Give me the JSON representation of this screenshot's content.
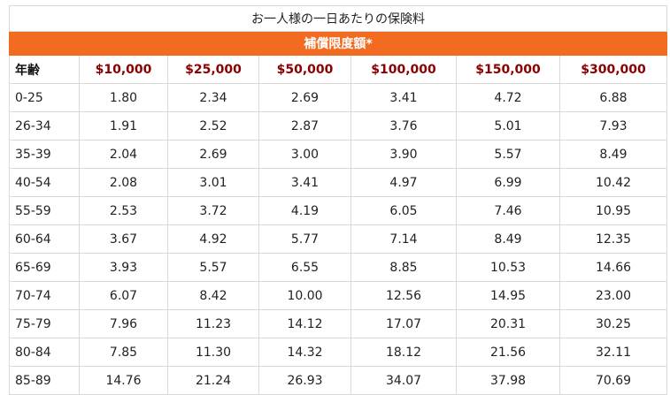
{
  "table": {
    "caption": "お一人様の一日あたりの保険料",
    "band_label": "補償限度額*",
    "age_header": "年齢",
    "amounts": [
      "$10,000",
      "$25,000",
      "$50,000",
      "$100,000",
      "$150,000",
      "$300,000"
    ],
    "rows": [
      {
        "age": "0-25",
        "values": [
          "1.80",
          "2.34",
          "2.69",
          "3.41",
          "4.72",
          "6.88"
        ]
      },
      {
        "age": "26-34",
        "values": [
          "1.91",
          "2.52",
          "2.87",
          "3.76",
          "5.01",
          "7.93"
        ]
      },
      {
        "age": "35-39",
        "values": [
          "2.04",
          "2.69",
          "3.00",
          "3.90",
          "5.57",
          "8.49"
        ]
      },
      {
        "age": "40-54",
        "values": [
          "2.08",
          "3.01",
          "3.41",
          "4.97",
          "6.99",
          "10.42"
        ]
      },
      {
        "age": "55-59",
        "values": [
          "2.53",
          "3.72",
          "4.19",
          "6.05",
          "7.46",
          "10.95"
        ]
      },
      {
        "age": "60-64",
        "values": [
          "3.67",
          "4.92",
          "5.77",
          "7.14",
          "8.49",
          "12.35"
        ]
      },
      {
        "age": "65-69",
        "values": [
          "3.93",
          "5.57",
          "6.55",
          "8.85",
          "10.53",
          "14.66"
        ]
      },
      {
        "age": "70-74",
        "values": [
          "6.07",
          "8.42",
          "10.00",
          "12.56",
          "14.95",
          "23.00"
        ]
      },
      {
        "age": "75-79",
        "values": [
          "7.96",
          "11.23",
          "14.12",
          "17.07",
          "20.31",
          "30.25"
        ]
      },
      {
        "age": "80-84",
        "values": [
          "7.85",
          "11.30",
          "14.32",
          "18.12",
          "21.56",
          "32.11"
        ]
      },
      {
        "age": "85-89",
        "values": [
          "14.76",
          "21.24",
          "26.93",
          "34.07",
          "37.98",
          "70.69"
        ]
      }
    ]
  },
  "colors": {
    "band": "#f36b21",
    "amount_header": "#8b0000"
  }
}
